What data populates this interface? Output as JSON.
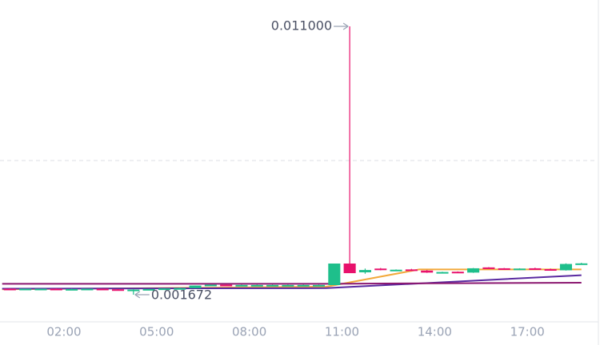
{
  "chart_data": {
    "type": "candlestick",
    "x": [
      0,
      0.5,
      1,
      1.5,
      2,
      2.5,
      3,
      3.5,
      4,
      4.5,
      5,
      5.5,
      6,
      6.5,
      7,
      7.5,
      8,
      8.5,
      9,
      9.5,
      10,
      10.5,
      11,
      11.5,
      12,
      12.5,
      13,
      13.5,
      14,
      14.5,
      15,
      15.5,
      16,
      16.5,
      17,
      17.5,
      18,
      18.5
    ],
    "interval": 0.5,
    "open": [
      0.00188,
      0.00187,
      0.00188,
      0.00188,
      0.00187,
      0.00187,
      0.00188,
      0.00186,
      0.00185,
      0.00185,
      0.00187,
      0.00189,
      0.0019,
      0.00199,
      0.00202,
      0.00201,
      0.00201,
      0.00201,
      0.00201,
      0.00201,
      0.00201,
      0.002005,
      0.002755,
      0.00245,
      0.00258,
      0.00252,
      0.00255,
      0.00251,
      0.00244,
      0.00247,
      0.00244,
      0.00262,
      0.00259,
      0.00254,
      0.00259,
      0.00256,
      0.00252,
      0.00274
    ],
    "high": [
      0.00189,
      0.00188,
      0.00188,
      0.00189,
      0.00188,
      0.00188,
      0.00188,
      0.00187,
      0.00186,
      0.00187,
      0.00189,
      0.00191,
      0.00199,
      0.00202,
      0.00203,
      0.00202,
      0.00202,
      0.00202,
      0.00202,
      0.00202,
      0.00202,
      0.002755,
      0.011,
      0.00258,
      0.0026,
      0.00255,
      0.00257,
      0.00253,
      0.00247,
      0.00248,
      0.0026,
      0.00263,
      0.0026,
      0.00259,
      0.00261,
      0.00258,
      0.00276,
      0.00278
    ],
    "low": [
      0.00187,
      0.00186,
      0.00187,
      0.00187,
      0.00186,
      0.00186,
      0.00186,
      0.00185,
      0.001672,
      0.00184,
      0.00186,
      0.00188,
      0.0019,
      0.00198,
      0.00201,
      0.002,
      0.002,
      0.002,
      0.002,
      0.002,
      0.002,
      0.002005,
      0.00242,
      0.0024,
      0.00252,
      0.0025,
      0.00249,
      0.00243,
      0.00243,
      0.00244,
      0.00243,
      0.00258,
      0.00254,
      0.00253,
      0.00255,
      0.00251,
      0.00251,
      0.00272
    ],
    "close": [
      0.00187,
      0.00188,
      0.00188,
      0.00187,
      0.00187,
      0.00188,
      0.00186,
      0.00185,
      0.00185,
      0.00187,
      0.00189,
      0.0019,
      0.00199,
      0.00202,
      0.00201,
      0.00201,
      0.00201,
      0.00201,
      0.00201,
      0.00201,
      0.00201,
      0.002755,
      0.00242,
      0.00253,
      0.00256,
      0.00254,
      0.00251,
      0.00244,
      0.00246,
      0.00245,
      0.00259,
      0.00259,
      0.00255,
      0.00258,
      0.00256,
      0.00252,
      0.00274,
      0.00276
    ],
    "up_color": "#1ebf8b",
    "down_color": "#e8116c",
    "lines": [
      {
        "color": "#f2a93b",
        "x": [
          0,
          10.5,
          13.5,
          18.75
        ],
        "values": [
          0.00186,
          0.00195,
          0.00255,
          0.00255
        ]
      },
      {
        "color": "#5a2aa0",
        "x": [
          0,
          10.5,
          18.75
        ],
        "values": [
          0.00188,
          0.0019,
          0.00235
        ]
      },
      {
        "color": "#8b1870",
        "x": [
          0,
          10.5,
          18.75
        ],
        "values": [
          0.00205,
          0.00205,
          0.00209
        ]
      }
    ],
    "annotations": [
      {
        "x": 11.25,
        "value": 0.011,
        "label": "0.011000",
        "side": "left"
      },
      {
        "x": 4.25,
        "value": 0.001672,
        "label": "0.001672",
        "side": "right"
      }
    ],
    "xlim": [
      -0.07,
      19.3
    ],
    "xticks": [
      {
        "value": 2,
        "label": "02:00"
      },
      {
        "value": 5,
        "label": "05:00"
      },
      {
        "value": 8,
        "label": "08:00"
      },
      {
        "value": 11,
        "label": "11:00"
      },
      {
        "value": 14,
        "label": "14:00"
      },
      {
        "value": 17,
        "label": "17:00"
      }
    ],
    "ylim": [
      0.000728,
      0.011916
    ],
    "gridlines": [
      0.006336
    ]
  }
}
